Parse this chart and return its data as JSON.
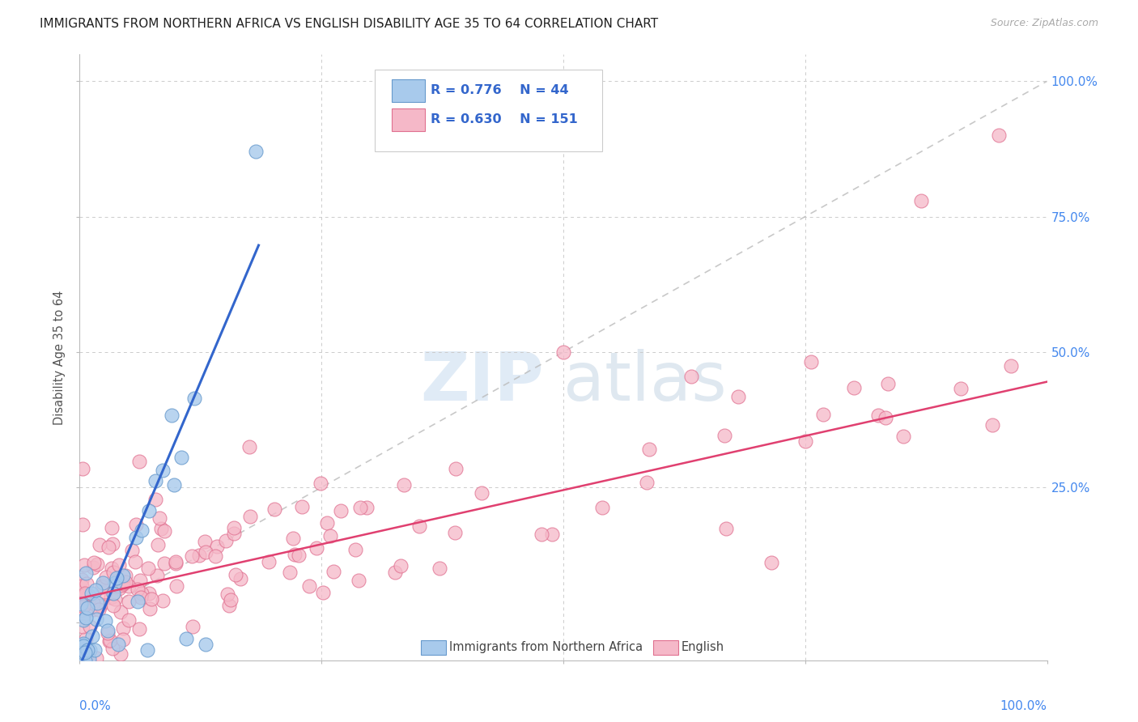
{
  "title": "IMMIGRANTS FROM NORTHERN AFRICA VS ENGLISH DISABILITY AGE 35 TO 64 CORRELATION CHART",
  "source": "Source: ZipAtlas.com",
  "ylabel": "Disability Age 35 to 64",
  "legend_blue_label": "Immigrants from Northern Africa",
  "legend_pink_label": "English",
  "blue_R": "0.776",
  "blue_N": "44",
  "pink_R": "0.630",
  "pink_N": "151",
  "blue_color": "#A8CAEC",
  "pink_color": "#F5B8C8",
  "blue_edge_color": "#6699CC",
  "pink_edge_color": "#E07090",
  "blue_line_color": "#3366CC",
  "pink_line_color": "#E04070",
  "diagonal_color": "#BBBBBB",
  "background_color": "#FFFFFF",
  "grid_color": "#CCCCCC",
  "title_color": "#222222",
  "legend_R_color": "#3366CC",
  "right_tick_color": "#4488EE",
  "xlim": [
    0.0,
    1.0
  ],
  "ylim": [
    -0.07,
    1.05
  ],
  "blue_slope": 4.2,
  "blue_intercept": -0.08,
  "pink_slope": 0.4,
  "pink_intercept": 0.045,
  "blue_line_xmax": 0.185,
  "watermark_zip_color": "#C8DCF0",
  "watermark_atlas_color": "#B8CCDF"
}
